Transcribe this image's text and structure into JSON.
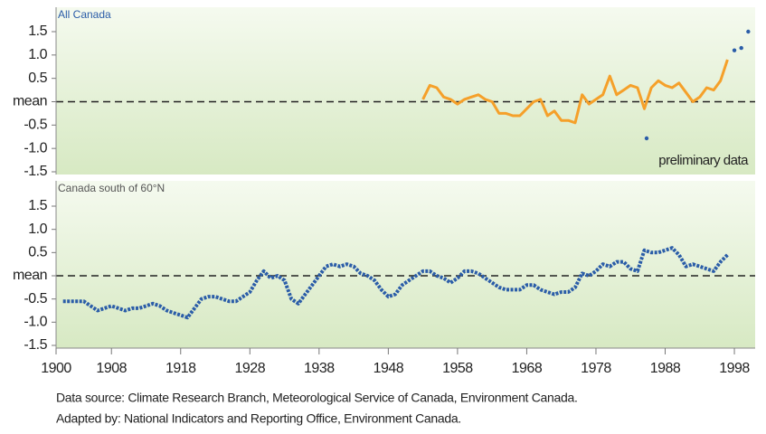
{
  "chart_data": [
    {
      "type": "line",
      "title": "All Canada",
      "xlim": [
        1900,
        2001
      ],
      "ylim": [
        -1.5,
        1.5
      ],
      "yticks": [
        1.5,
        {
          "value": 1,
          "label": "1.0"
        },
        0.5,
        {
          "value": 0,
          "label": "mean"
        },
        -0.5,
        {
          "value": -1,
          "label": "-1.0"
        },
        -1.5
      ],
      "mean_line": true,
      "legend": "bottom-right",
      "series": [
        {
          "color": "#f5a02a",
          "mark": "line",
          "x": [
            1953,
            1954,
            1955,
            1956,
            1957,
            1958,
            1959,
            1960,
            1961,
            1962,
            1963,
            1964,
            1965,
            1966,
            1967,
            1968,
            1969,
            1970,
            1971,
            1972,
            1973,
            1974,
            1975,
            1976,
            1977,
            1978,
            1979,
            1980,
            1981,
            1982,
            1983,
            1984,
            1985,
            1986,
            1987,
            1988,
            1989,
            1990,
            1991,
            1992,
            1993,
            1994,
            1995,
            1996,
            1997
          ],
          "values": [
            0.05,
            0.35,
            0.3,
            0.1,
            0.05,
            -0.05,
            0.05,
            0.1,
            0.15,
            0.05,
            0.0,
            -0.25,
            -0.25,
            -0.3,
            -0.3,
            -0.15,
            0.0,
            0.05,
            -0.3,
            -0.2,
            -0.4,
            -0.4,
            -0.45,
            0.15,
            -0.05,
            0.05,
            0.15,
            0.55,
            0.15,
            0.25,
            0.35,
            0.3,
            -0.15,
            0.3,
            0.45,
            0.35,
            0.3,
            0.4,
            0.2,
            0.0,
            0.1,
            0.3,
            0.25,
            0.45,
            0.9
          ]
        },
        {
          "name": "preliminary data",
          "color": "#2b5da8",
          "mark": "points",
          "x": [
            1998,
            1999,
            2000
          ],
          "values": [
            1.1,
            1.15,
            1.5
          ]
        }
      ]
    },
    {
      "type": "line",
      "title": "Canada south of 60°N",
      "xlim": [
        1900,
        2001
      ],
      "ylim": [
        -1.5,
        1.5
      ],
      "yticks": [
        1.5,
        {
          "value": 1,
          "label": "1.0"
        },
        0.5,
        {
          "value": 0,
          "label": "mean"
        },
        -0.5,
        {
          "value": -1,
          "label": "-1.0"
        },
        -1.5
      ],
      "xticks": [
        1900,
        1908,
        1918,
        1928,
        1938,
        1948,
        1958,
        1968,
        1978,
        1988,
        1998
      ],
      "mean_line": true,
      "series": [
        {
          "color": "#2b5da8",
          "mark": "line",
          "dashed": true,
          "x": [
            1901,
            1902,
            1903,
            1904,
            1905,
            1906,
            1907,
            1908,
            1909,
            1910,
            1911,
            1912,
            1913,
            1914,
            1915,
            1916,
            1917,
            1918,
            1919,
            1920,
            1921,
            1922,
            1923,
            1924,
            1925,
            1926,
            1927,
            1928,
            1929,
            1930,
            1931,
            1932,
            1933,
            1934,
            1935,
            1936,
            1937,
            1938,
            1939,
            1940,
            1941,
            1942,
            1943,
            1944,
            1945,
            1946,
            1947,
            1948,
            1949,
            1950,
            1951,
            1952,
            1953,
            1954,
            1955,
            1956,
            1957,
            1958,
            1959,
            1960,
            1961,
            1962,
            1963,
            1964,
            1965,
            1966,
            1967,
            1968,
            1969,
            1970,
            1971,
            1972,
            1973,
            1974,
            1975,
            1976,
            1977,
            1978,
            1979,
            1980,
            1981,
            1982,
            1983,
            1984,
            1985,
            1986,
            1987,
            1988,
            1989,
            1990,
            1991,
            1992,
            1993,
            1994,
            1995,
            1996,
            1997
          ],
          "values": [
            -0.55,
            -0.55,
            -0.55,
            -0.55,
            -0.65,
            -0.75,
            -0.7,
            -0.65,
            -0.7,
            -0.75,
            -0.7,
            -0.7,
            -0.65,
            -0.6,
            -0.65,
            -0.75,
            -0.8,
            -0.85,
            -0.9,
            -0.7,
            -0.5,
            -0.45,
            -0.45,
            -0.5,
            -0.55,
            -0.55,
            -0.45,
            -0.35,
            -0.1,
            0.1,
            -0.05,
            0.0,
            -0.1,
            -0.5,
            -0.6,
            -0.4,
            -0.2,
            0.0,
            0.2,
            0.25,
            0.2,
            0.25,
            0.2,
            0.05,
            0.0,
            -0.1,
            -0.3,
            -0.45,
            -0.4,
            -0.2,
            -0.1,
            0.0,
            0.1,
            0.1,
            0.0,
            -0.05,
            -0.15,
            -0.05,
            0.1,
            0.1,
            0.05,
            -0.05,
            -0.15,
            -0.25,
            -0.3,
            -0.3,
            -0.3,
            -0.2,
            -0.2,
            -0.3,
            -0.35,
            -0.4,
            -0.35,
            -0.35,
            -0.25,
            0.05,
            0.0,
            0.1,
            0.25,
            0.2,
            0.3,
            0.3,
            0.15,
            0.1,
            0.55,
            0.5,
            0.5,
            0.55,
            0.6,
            0.45,
            0.2,
            0.25,
            0.2,
            0.15,
            0.1,
            0.3,
            0.45
          ]
        }
      ]
    }
  ],
  "footer": [
    "Data source: Climate Research Branch, Meteorological Service of Canada, Environment Canada.",
    "Adapted by: National Indicators and Reporting Office, Environment Canada."
  ]
}
